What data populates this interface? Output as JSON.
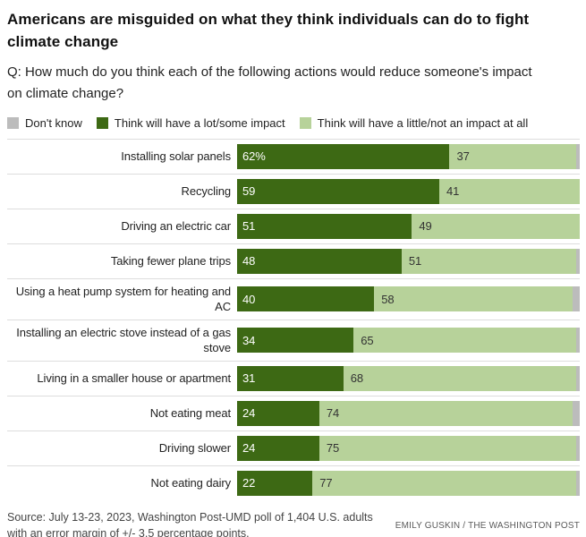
{
  "header": {
    "title": "Americans are misguided on what they think individuals can do to fight climate change",
    "question": "Q: How much do you think each of the following actions would reduce someone's impact on climate change?"
  },
  "colors": {
    "dark_green": "#3d6914",
    "light_green": "#b7d29a",
    "gray": "#bcbcbc",
    "separator": "#dddddd"
  },
  "legend": {
    "items": [
      {
        "label": "Don't know",
        "color": "gray"
      },
      {
        "label": "Think will have a lot/some impact",
        "color": "dark_green"
      },
      {
        "label": "Think will have a little/not an impact at all",
        "color": "light_green"
      }
    ]
  },
  "chart_data": {
    "type": "bar",
    "stacked": true,
    "orientation": "horizontal",
    "unit": "percent",
    "xlim": [
      0,
      100
    ],
    "legend_position": "top",
    "grid": false,
    "categories": [
      "Installing solar panels",
      "Recycling",
      "Driving an electric car",
      "Taking fewer plane trips",
      "Using a heat pump system for heating and AC",
      "Installing an electric stove instead of a gas stove",
      "Living in a smaller house or apartment",
      "Not eating meat",
      "Driving slower",
      "Not eating dairy"
    ],
    "series": [
      {
        "name": "Think will have a lot/some impact",
        "color": "dark_green",
        "values": [
          62,
          59,
          51,
          48,
          40,
          34,
          31,
          24,
          24,
          22
        ],
        "labels": [
          "62%",
          "59",
          "51",
          "48",
          "40",
          "34",
          "31",
          "24",
          "24",
          "22"
        ]
      },
      {
        "name": "Think will have a little/not an impact at all",
        "color": "light_green",
        "values": [
          37,
          41,
          49,
          51,
          58,
          65,
          68,
          74,
          75,
          77
        ],
        "labels": [
          "37",
          "41",
          "49",
          "51",
          "58",
          "65",
          "68",
          "74",
          "75",
          "77"
        ]
      },
      {
        "name": "Don't know",
        "color": "gray",
        "values": [
          1,
          0,
          0,
          1,
          2,
          1,
          1,
          2,
          1,
          1
        ],
        "labels": [
          "",
          "",
          "",
          "",
          "",
          "",
          "",
          "",
          "",
          ""
        ]
      }
    ]
  },
  "footer": {
    "source": "Source: July 13-23, 2023, Washington Post-UMD poll of 1,404 U.S. adults with an error margin of +/- 3.5 percentage points.",
    "credit": "EMILY GUSKIN / THE WASHINGTON POST"
  }
}
